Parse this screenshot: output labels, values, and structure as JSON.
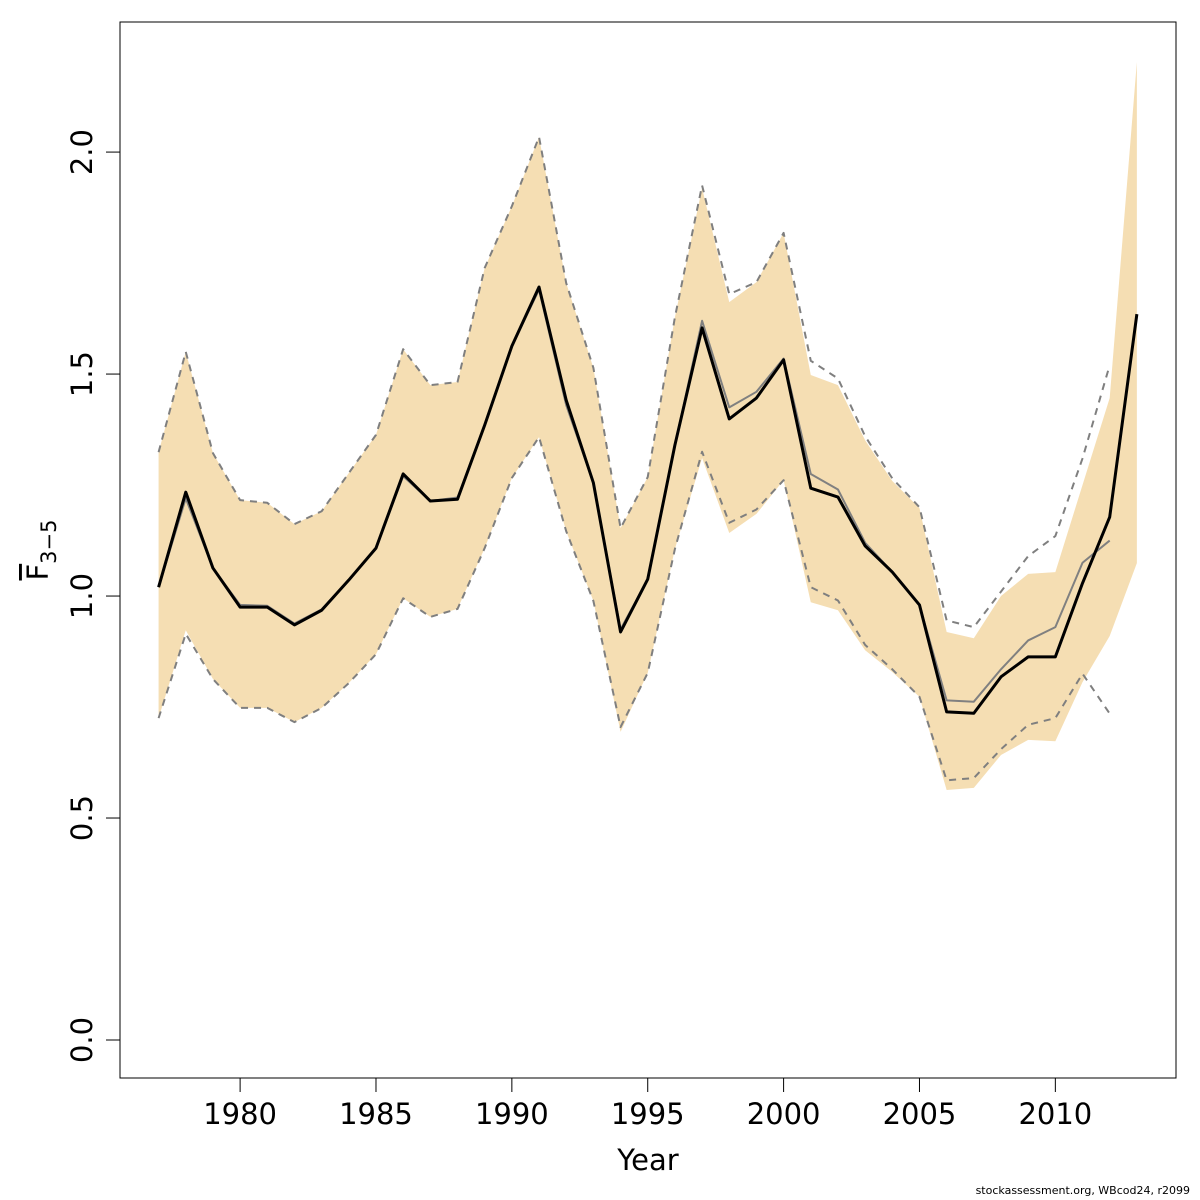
{
  "chart_data": {
    "type": "line",
    "xlabel": "Year",
    "ylabel": "F",
    "ylabel_subscript": "3−5",
    "footnote": "stockassessment.org, WBcod24, r2099",
    "x": [
      1977,
      1978,
      1979,
      1980,
      1981,
      1982,
      1983,
      1984,
      1985,
      1986,
      1987,
      1988,
      1989,
      1990,
      1991,
      1992,
      1993,
      1994,
      1995,
      1996,
      1997,
      1998,
      1999,
      2000,
      2001,
      2002,
      2003,
      2004,
      2005,
      2006,
      2007,
      2008,
      2009,
      2010,
      2011,
      2012,
      2013
    ],
    "xlim": [
      1975.58,
      2014.44
    ],
    "ylim": [
      -0.0856,
      2.293
    ],
    "xticks": [
      1980,
      1985,
      1990,
      1995,
      2000,
      2005,
      2010
    ],
    "yticks": [
      {
        "value": 0,
        "label": "0.0"
      },
      {
        "value": 0.5,
        "label": "0.5"
      },
      {
        "value": 1,
        "label": "1.0"
      },
      {
        "value": 1.5,
        "label": "1.5"
      },
      {
        "value": 2,
        "label": "2.0"
      }
    ],
    "band": {
      "color": "#f5deb3",
      "upper": [
        1.324,
        1.55,
        1.322,
        1.216,
        1.21,
        1.162,
        1.191,
        1.277,
        1.363,
        1.556,
        1.475,
        1.482,
        1.739,
        1.878,
        2.034,
        1.705,
        1.514,
        1.153,
        1.268,
        1.628,
        1.919,
        1.662,
        1.707,
        1.818,
        1.498,
        1.475,
        1.351,
        1.259,
        1.198,
        0.919,
        0.905,
        1.0,
        1.05,
        1.054,
        1.25,
        1.446,
        2.203
      ],
      "lower": [
        0.725,
        0.923,
        0.813,
        0.748,
        0.748,
        0.716,
        0.748,
        0.804,
        0.869,
        0.995,
        0.953,
        0.971,
        1.108,
        1.266,
        1.358,
        1.146,
        0.989,
        0.694,
        0.827,
        1.106,
        1.311,
        1.142,
        1.185,
        1.261,
        0.986,
        0.968,
        0.878,
        0.829,
        0.773,
        0.563,
        0.568,
        0.642,
        0.676,
        0.673,
        0.806,
        0.91,
        1.074
      ]
    },
    "series": [
      {
        "color": "#7f7f7f",
        "dash": true,
        "width": 2,
        "values": [
          1.324,
          1.55,
          1.322,
          1.216,
          1.21,
          1.162,
          1.191,
          1.277,
          1.363,
          1.556,
          1.475,
          1.482,
          1.739,
          1.878,
          2.034,
          1.705,
          1.514,
          1.153,
          1.268,
          1.628,
          1.925,
          1.68,
          1.707,
          1.818,
          1.53,
          1.49,
          1.36,
          1.265,
          1.2,
          0.945,
          0.93,
          1.01,
          1.09,
          1.135,
          1.31,
          1.52,
          null
        ]
      },
      {
        "color": "#7f7f7f",
        "dash": true,
        "width": 2,
        "values": [
          0.725,
          0.915,
          0.813,
          0.748,
          0.748,
          0.716,
          0.748,
          0.804,
          0.869,
          0.995,
          0.953,
          0.971,
          1.108,
          1.266,
          1.358,
          1.146,
          0.989,
          0.705,
          0.827,
          1.106,
          1.325,
          1.165,
          1.195,
          1.261,
          1.02,
          0.99,
          0.89,
          0.835,
          0.773,
          0.585,
          0.59,
          0.655,
          0.71,
          0.725,
          0.825,
          0.735,
          null
        ]
      },
      {
        "color": "#808080",
        "dash": false,
        "width": 2,
        "values": [
          1.02,
          1.22,
          1.063,
          0.98,
          0.978,
          0.938,
          0.97,
          1.036,
          1.108,
          1.27,
          1.214,
          1.222,
          1.385,
          1.563,
          1.69,
          1.43,
          1.255,
          0.925,
          1.038,
          1.34,
          1.62,
          1.425,
          1.46,
          1.535,
          1.275,
          1.24,
          1.12,
          1.054,
          0.98,
          0.765,
          0.762,
          0.835,
          0.9,
          0.93,
          1.075,
          1.125,
          null
        ]
      },
      {
        "color": "#000000",
        "dash": false,
        "width": 3,
        "values": [
          1.02,
          1.234,
          1.063,
          0.975,
          0.975,
          0.935,
          0.968,
          1.036,
          1.108,
          1.275,
          1.214,
          1.218,
          1.385,
          1.563,
          1.696,
          1.441,
          1.255,
          0.919,
          1.038,
          1.34,
          1.604,
          1.399,
          1.446,
          1.532,
          1.243,
          1.223,
          1.113,
          1.054,
          0.98,
          0.739,
          0.736,
          0.818,
          0.863,
          0.863,
          1.029,
          1.178,
          1.635
        ]
      }
    ]
  }
}
